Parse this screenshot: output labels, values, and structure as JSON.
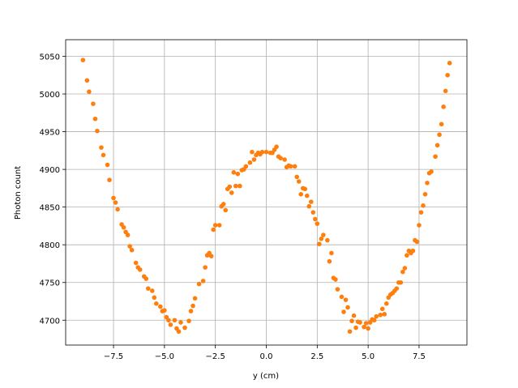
{
  "chart_data": {
    "type": "scatter",
    "xlabel": "y (cm)",
    "ylabel": "Photon count",
    "color": "#ff7f0e",
    "grid": true,
    "xlim": [
      -9.85,
      9.85
    ],
    "ylim": [
      4667,
      5072
    ],
    "xticks": [
      {
        "value": -7.5,
        "label": "−7.5"
      },
      {
        "value": -5,
        "label": "−5.0"
      },
      {
        "value": -2.5,
        "label": "−2.5"
      },
      {
        "value": 0,
        "label": "0.0"
      },
      2.5,
      {
        "value": 5,
        "label": "5.0"
      },
      7.5
    ],
    "yticks": [
      4700,
      4750,
      4800,
      4850,
      4900,
      4950,
      5000,
      5050
    ],
    "x": [
      -9.0,
      -8.8,
      -8.7,
      -8.5,
      -8.4,
      -8.3,
      -8.1,
      -8.0,
      -7.8,
      -7.7,
      -7.5,
      -7.4,
      -7.3,
      -7.1,
      -7.0,
      -6.9,
      -6.8,
      -6.7,
      -6.6,
      -6.4,
      -6.3,
      -6.2,
      -6.0,
      -5.9,
      -5.8,
      -5.6,
      -5.5,
      -5.4,
      -5.2,
      -5.1,
      -5.0,
      -4.9,
      -4.8,
      -4.7,
      -4.5,
      -4.4,
      -4.3,
      -4.2,
      -4.0,
      -3.8,
      -3.7,
      -3.6,
      -3.5,
      -3.3,
      -3.1,
      -3.0,
      -2.9,
      -2.8,
      -2.7,
      -2.6,
      -2.5,
      -2.3,
      -2.2,
      -2.1,
      -2.0,
      -1.9,
      -1.8,
      -1.7,
      -1.6,
      -1.5,
      -1.4,
      -1.3,
      -1.2,
      -1.1,
      -1.0,
      -0.8,
      -0.7,
      -0.6,
      -0.5,
      -0.4,
      -0.3,
      -0.2,
      0.0,
      0.2,
      0.3,
      0.4,
      0.5,
      0.6,
      0.7,
      0.9,
      1.0,
      1.1,
      1.2,
      1.4,
      1.5,
      1.6,
      1.7,
      1.8,
      1.9,
      2.0,
      2.1,
      2.2,
      2.3,
      2.4,
      2.5,
      2.6,
      2.7,
      2.8,
      3.0,
      3.1,
      3.2,
      3.3,
      3.4,
      3.5,
      3.7,
      3.8,
      3.9,
      4.0,
      4.1,
      4.2,
      4.3,
      4.4,
      4.5,
      4.6,
      4.8,
      4.9,
      5.0,
      5.1,
      5.2,
      5.3,
      5.4,
      5.6,
      5.7,
      5.8,
      5.9,
      6.0,
      6.1,
      6.2,
      6.3,
      6.4,
      6.5,
      6.6,
      6.7,
      6.8,
      6.9,
      7.0,
      7.1,
      7.2,
      7.3,
      7.4,
      7.5,
      7.6,
      7.7,
      7.8,
      7.9,
      8.0,
      8.1,
      8.3,
      8.4,
      8.5,
      8.6,
      8.7,
      8.8,
      8.9,
      9.0
    ],
    "values": [
      5045,
      5018,
      5003,
      4987,
      4967,
      4951,
      4929,
      4919,
      4906,
      4886,
      4862,
      4856,
      4847,
      4827,
      4823,
      4817,
      4813,
      4798,
      4793,
      4776,
      4770,
      4767,
      4758,
      4755,
      4742,
      4739,
      4730,
      4722,
      4718,
      4712,
      4713,
      4704,
      4700,
      4694,
      4700,
      4689,
      4685,
      4697,
      4690,
      4699,
      4712,
      4719,
      4729,
      4748,
      4752,
      4770,
      4786,
      4789,
      4785,
      4820,
      4826,
      4826,
      4851,
      4854,
      4846,
      4874,
      4877,
      4869,
      4896,
      4878,
      4894,
      4878,
      4899,
      4900,
      4904,
      4909,
      4923,
      4913,
      4919,
      4922,
      4920,
      4923,
      4923,
      4922,
      4922,
      4926,
      4930,
      4917,
      4915,
      4913,
      4903,
      4905,
      4904,
      4904,
      4890,
      4884,
      4867,
      4875,
      4874,
      4865,
      4851,
      4857,
      4843,
      4834,
      4828,
      4801,
      4808,
      4813,
      4806,
      4778,
      4789,
      4756,
      4754,
      4741,
      4731,
      4711,
      4727,
      4717,
      4685,
      4699,
      4706,
      4690,
      4698,
      4697,
      4691,
      4696,
      4689,
      4697,
      4701,
      4700,
      4705,
      4707,
      4715,
      4708,
      4722,
      4730,
      4734,
      4736,
      4739,
      4742,
      4750,
      4750,
      4764,
      4769,
      4786,
      4792,
      4789,
      4792,
      4806,
      4804,
      4826,
      4843,
      4852,
      4867,
      4882,
      4895,
      4897,
      4917,
      4932,
      4946,
      4960,
      4983,
      5004,
      5025,
      5041
    ]
  }
}
